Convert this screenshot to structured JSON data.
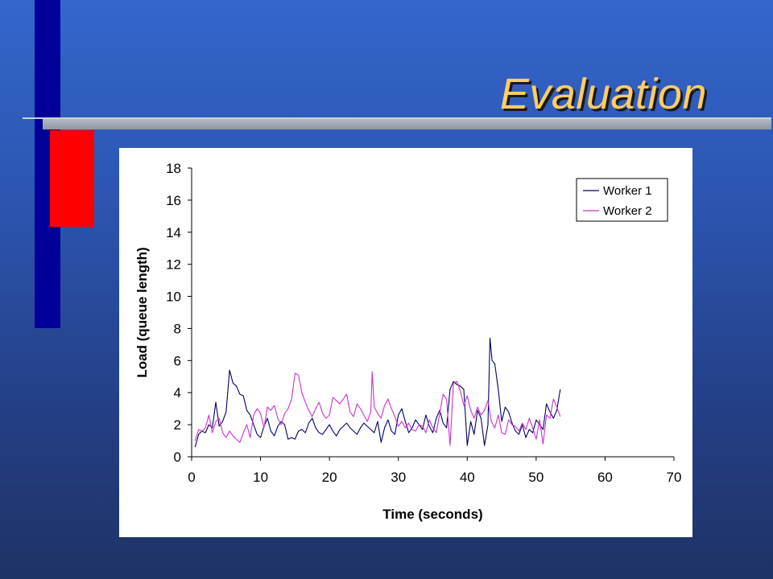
{
  "slide": {
    "title": "Evaluation"
  },
  "chart_data": {
    "type": "line",
    "title": "",
    "xlabel": "Time (seconds)",
    "ylabel": "Load (queue length)",
    "xlim": [
      0,
      70
    ],
    "ylim": [
      0,
      18
    ],
    "xticks": [
      0,
      10,
      20,
      30,
      40,
      50,
      60,
      70
    ],
    "yticks": [
      0,
      2,
      4,
      6,
      8,
      10,
      12,
      14,
      16,
      18
    ],
    "grid": false,
    "legend": "top-right",
    "series": [
      {
        "name": "Worker 1",
        "color": "#000066",
        "x": [
          0.5,
          1,
          1.5,
          2,
          2.5,
          3,
          3.5,
          4,
          4.5,
          5,
          5.5,
          6,
          6.5,
          7,
          7.5,
          8,
          8.5,
          9,
          9.5,
          10,
          10.5,
          11,
          11.5,
          12,
          12.5,
          13,
          13.5,
          14,
          14.5,
          15,
          15.5,
          16,
          16.5,
          17,
          17.5,
          18,
          18.5,
          19,
          19.5,
          20,
          20.5,
          21,
          21.5,
          22,
          22.5,
          23,
          23.5,
          24,
          24.5,
          25,
          25.5,
          26,
          26.5,
          27,
          27.5,
          28,
          28.5,
          29,
          29.5,
          30,
          30.5,
          31,
          31.5,
          32,
          32.5,
          33,
          33.5,
          34,
          34.5,
          35,
          35.5,
          36,
          36.5,
          37,
          37.5,
          38,
          38.5,
          39,
          39.5,
          40,
          40.5,
          41,
          41.5,
          42,
          42.5,
          43,
          43.3,
          43.6,
          44,
          44.5,
          45,
          45.5,
          46,
          46.5,
          47,
          47.5,
          48,
          48.5,
          49,
          49.5,
          50,
          50.5,
          51,
          51.5,
          52,
          52.5,
          53,
          53.5
        ],
        "y": [
          0.6,
          1.4,
          1.6,
          1.5,
          2.0,
          1.8,
          3.4,
          1.9,
          2.2,
          2.8,
          5.4,
          4.6,
          4.4,
          3.9,
          3.8,
          2.9,
          2.6,
          2.0,
          1.4,
          1.2,
          1.9,
          2.4,
          1.6,
          1.3,
          1.9,
          2.2,
          2.0,
          1.1,
          1.2,
          1.1,
          1.6,
          1.7,
          1.5,
          2.1,
          2.4,
          1.8,
          1.5,
          1.4,
          1.7,
          2.0,
          1.6,
          1.3,
          1.7,
          1.9,
          2.1,
          1.8,
          1.6,
          1.4,
          1.8,
          2.1,
          1.9,
          1.7,
          1.5,
          2.2,
          0.9,
          1.8,
          2.3,
          1.6,
          1.4,
          2.6,
          3.0,
          2.2,
          1.5,
          1.8,
          2.3,
          2.0,
          1.7,
          2.6,
          1.9,
          1.5,
          2.4,
          2.9,
          2.1,
          1.8,
          4.2,
          4.7,
          4.5,
          4.4,
          4.2,
          0.7,
          2.2,
          1.4,
          2.9,
          2.4,
          0.7,
          2.0,
          7.4,
          6.0,
          5.8,
          4.2,
          2.2,
          3.1,
          2.8,
          2.1,
          1.6,
          1.4,
          2.0,
          1.2,
          1.7,
          1.5,
          2.3,
          2.0,
          1.7,
          3.3,
          2.8,
          2.4,
          2.9,
          4.2
        ]
      },
      {
        "name": "Worker 2",
        "color": "#cc33cc",
        "x": [
          0.5,
          1,
          1.5,
          2,
          2.5,
          3,
          3.5,
          4,
          4.5,
          5,
          5.5,
          6,
          6.5,
          7,
          7.5,
          8,
          8.5,
          9,
          9.5,
          10,
          10.5,
          11,
          11.5,
          12,
          12.5,
          13,
          13.5,
          14,
          14.5,
          15,
          15.5,
          16,
          16.5,
          17,
          17.5,
          18,
          18.5,
          19,
          19.5,
          20,
          20.5,
          21,
          21.5,
          22,
          22.5,
          23,
          23.5,
          24,
          24.5,
          25,
          25.5,
          26,
          26.2,
          26.5,
          27,
          27.5,
          28,
          28.5,
          29,
          29.5,
          30,
          30.5,
          31,
          31.5,
          32,
          32.5,
          33,
          33.5,
          34,
          34.5,
          35,
          35.5,
          36,
          36.5,
          37,
          37.5,
          38,
          38.5,
          39,
          39.5,
          40,
          40.5,
          41,
          41.5,
          42,
          42.5,
          43,
          43.5,
          44,
          44.5,
          45,
          45.5,
          46,
          46.5,
          47,
          47.5,
          48,
          48.5,
          49,
          49.5,
          50,
          50.5,
          51,
          51.5,
          52,
          52.5,
          53,
          53.5
        ],
        "y": [
          1.0,
          1.7,
          1.6,
          1.8,
          2.6,
          1.5,
          2.2,
          2.4,
          1.5,
          1.2,
          1.6,
          1.3,
          1.1,
          0.9,
          1.5,
          2.0,
          1.2,
          2.6,
          3.0,
          2.7,
          1.8,
          3.1,
          2.9,
          3.2,
          2.4,
          2.0,
          2.7,
          3.0,
          3.6,
          5.2,
          5.1,
          4.0,
          3.4,
          2.9,
          2.5,
          3.0,
          3.4,
          2.7,
          2.4,
          2.6,
          3.7,
          3.5,
          3.3,
          3.6,
          3.9,
          2.8,
          2.5,
          3.3,
          3.0,
          2.6,
          2.2,
          2.8,
          5.3,
          3.1,
          2.7,
          2.4,
          3.2,
          3.6,
          3.0,
          2.5,
          1.9,
          2.2,
          1.8,
          2.1,
          1.7,
          1.6,
          2.0,
          1.9,
          1.5,
          2.3,
          1.8,
          1.5,
          2.7,
          3.9,
          3.6,
          0.7,
          4.6,
          4.7,
          4.1,
          3.2,
          3.8,
          2.9,
          2.4,
          3.1,
          2.6,
          2.9,
          3.5,
          2.2,
          1.8,
          2.6,
          1.5,
          1.4,
          2.3,
          2.0,
          1.9,
          1.6,
          2.1,
          1.7,
          2.4,
          1.8,
          1.1,
          2.3,
          0.8,
          2.6,
          2.4,
          3.6,
          3.1,
          2.5
        ]
      }
    ]
  }
}
